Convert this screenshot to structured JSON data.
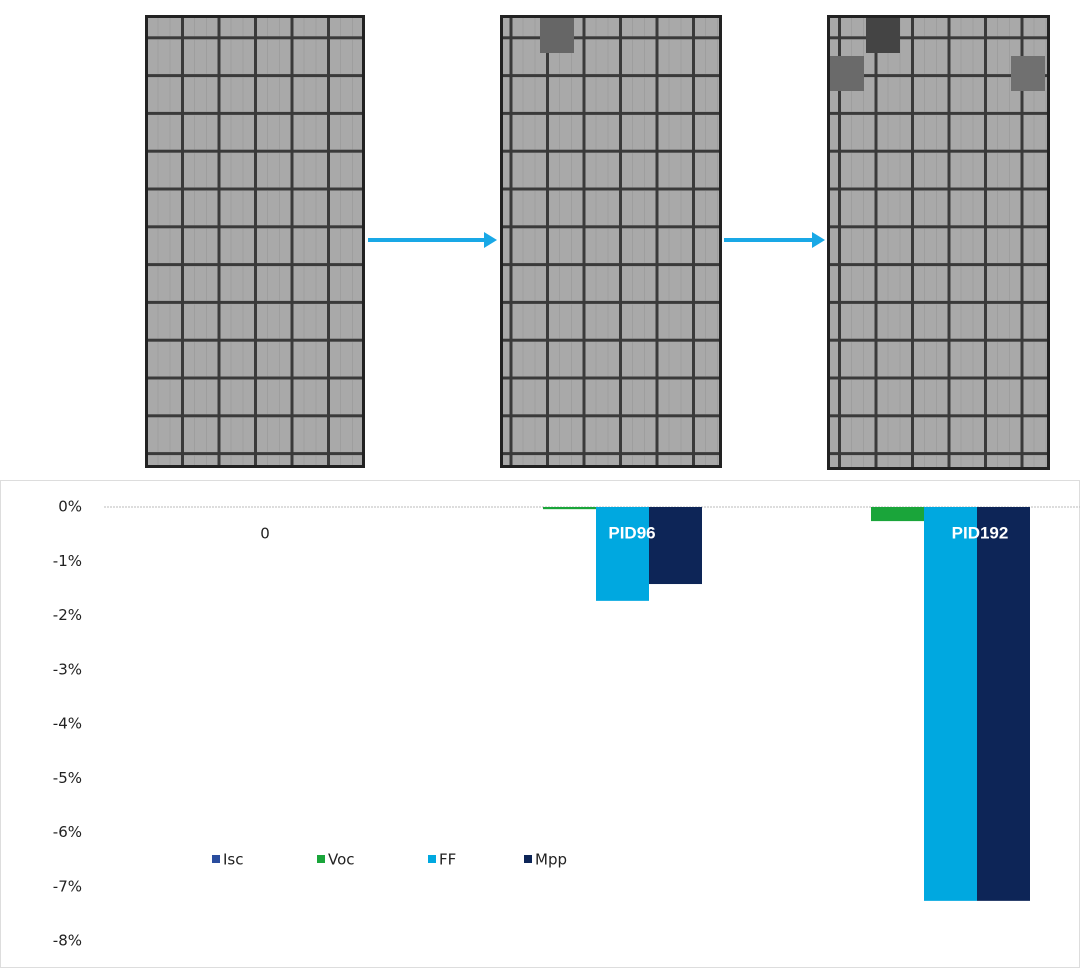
{
  "chart_data": {
    "type": "bar",
    "categories": [
      "0",
      "PID96",
      "PID192"
    ],
    "series": [
      {
        "name": "Isc",
        "color": "#2a4d9e",
        "values": [
          0,
          0,
          0
        ]
      },
      {
        "name": "Voc",
        "color": "#1aa53a",
        "values": [
          0,
          -0.04,
          -0.26
        ]
      },
      {
        "name": "FF",
        "color": "#00a8e0",
        "values": [
          0,
          -1.73,
          -7.26
        ]
      },
      {
        "name": "Mpp",
        "color": "#0d2557",
        "values": [
          0,
          -1.42,
          -7.26
        ]
      }
    ],
    "ylim": [
      -8,
      0
    ],
    "yticks": [
      {
        "value": 0,
        "label": "0%"
      },
      {
        "value": -1,
        "label": "-1%"
      },
      {
        "value": -2,
        "label": "-2%"
      },
      {
        "value": -3,
        "label": "-3%"
      },
      {
        "value": -4,
        "label": "-4%"
      },
      {
        "value": -5,
        "label": "-5%"
      },
      {
        "value": -6,
        "label": "-6%"
      },
      {
        "value": -7,
        "label": "-7%"
      },
      {
        "value": -8,
        "label": "-8%"
      }
    ],
    "legend": "lower left"
  }
}
